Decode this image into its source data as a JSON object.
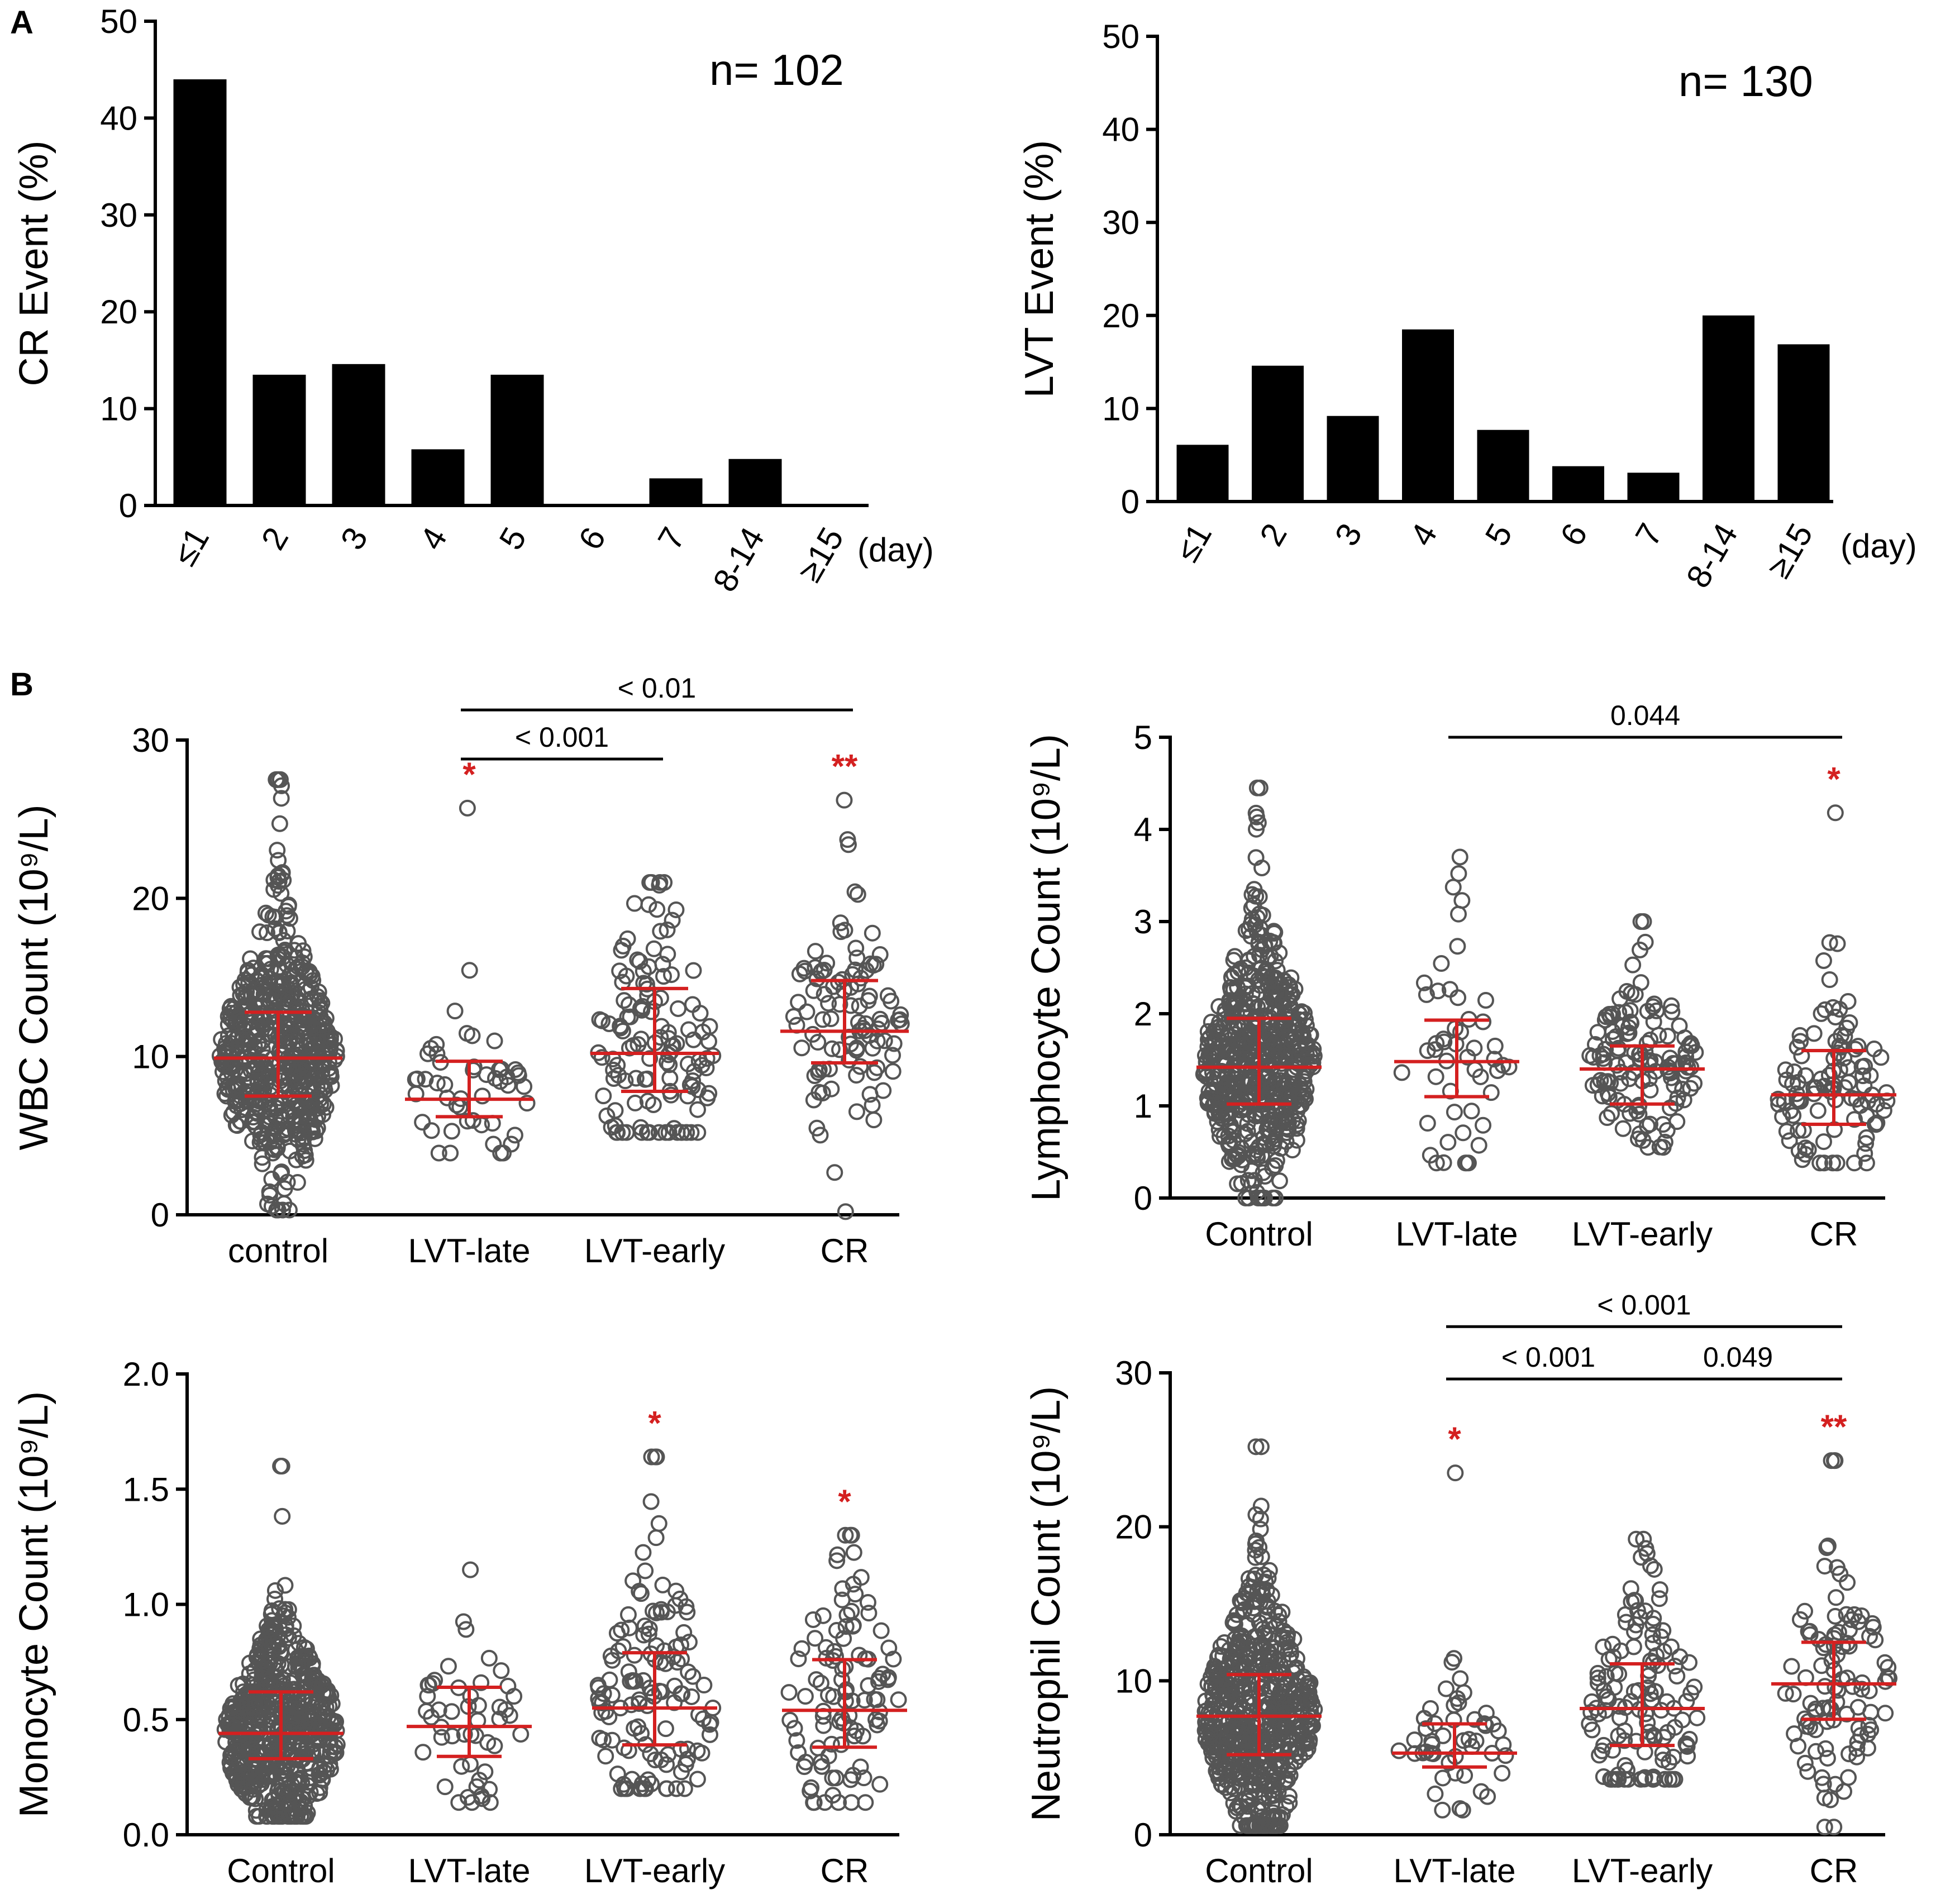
{
  "panel_labels": {
    "a": "A",
    "b": "B"
  },
  "chart_data": [
    {
      "id": "cr-hist",
      "type": "bar",
      "title": "",
      "ylabel": "CR Event  (%)",
      "xlabel": "",
      "annotation": "n= 102",
      "unit_label": "(day)",
      "categories": [
        "≤1",
        "2",
        "3",
        "4",
        "5",
        "6",
        "7",
        "8-14",
        "≥15"
      ],
      "values": [
        44,
        13.5,
        14.6,
        5.8,
        13.5,
        0,
        2.8,
        4.8,
        0
      ],
      "ylim": [
        0,
        50
      ],
      "yticks": [
        0,
        10,
        20,
        30,
        40,
        50
      ]
    },
    {
      "id": "lvt-hist",
      "type": "bar",
      "title": "",
      "ylabel": "LVT Event  (%)",
      "xlabel": "",
      "annotation": "n= 130",
      "unit_label": "(day)",
      "categories": [
        "≤1",
        "2",
        "3",
        "4",
        "5",
        "6",
        "7",
        "8-14",
        "≥15"
      ],
      "values": [
        6.1,
        14.6,
        9.2,
        18.5,
        7.7,
        3.8,
        3.1,
        20,
        16.9
      ],
      "ylim": [
        0,
        50
      ],
      "yticks": [
        0,
        10,
        20,
        30,
        40,
        50
      ]
    },
    {
      "id": "wbc",
      "type": "scatter",
      "ylabel": "WBC Count (10⁹/L)",
      "categories": [
        "control",
        "LVT-late",
        "LVT-early",
        "CR"
      ],
      "ylim": [
        0,
        30
      ],
      "yticks": [
        0,
        10,
        20,
        30
      ],
      "groups": [
        {
          "n": 600,
          "median": 9.9,
          "q1": 7.5,
          "q3": 12.8,
          "min": 0.3,
          "max": 27.5
        },
        {
          "n": 50,
          "median": 7.3,
          "q1": 6.2,
          "q3": 9.7,
          "min": 3.9,
          "max": 25.7
        },
        {
          "n": 130,
          "median": 10.2,
          "q1": 7.8,
          "q3": 14.3,
          "min": 5.2,
          "max": 21.0
        },
        {
          "n": 102,
          "median": 11.6,
          "q1": 9.6,
          "q3": 14.8,
          "min": 0.2,
          "max": 26.2
        }
      ],
      "significance": [
        "",
        "*",
        "",
        "**"
      ],
      "comparisons": [
        {
          "from": 1,
          "to": 3,
          "label": "< 0.01",
          "y": 31.9
        },
        {
          "from": 1,
          "to": 2,
          "label": "< 0.001",
          "y": 28.8
        }
      ]
    },
    {
      "id": "lymph",
      "type": "scatter",
      "ylabel": "Lymphocyte Count (10⁹/L)",
      "categories": [
        "Control",
        "LVT-late",
        "LVT-early",
        "CR"
      ],
      "ylim": [
        0,
        5
      ],
      "yticks": [
        0,
        1,
        2,
        3,
        4,
        5
      ],
      "groups": [
        {
          "n": 600,
          "median": 1.42,
          "q1": 1.02,
          "q3": 1.95,
          "min": 0.0,
          "max": 4.45
        },
        {
          "n": 50,
          "median": 1.48,
          "q1": 1.1,
          "q3": 1.93,
          "min": 0.38,
          "max": 3.7
        },
        {
          "n": 130,
          "median": 1.4,
          "q1": 1.02,
          "q3": 1.65,
          "min": 0.55,
          "max": 3.0
        },
        {
          "n": 102,
          "median": 1.12,
          "q1": 0.8,
          "q3": 1.6,
          "min": 0.38,
          "max": 4.18
        }
      ],
      "significance": [
        "",
        "",
        "",
        "*"
      ],
      "comparisons": [
        {
          "from": 1,
          "to": 3,
          "label": "0.044",
          "y": 5.0
        }
      ]
    },
    {
      "id": "mono",
      "type": "scatter",
      "ylabel": "Monocyte Count (10⁹/L)",
      "categories": [
        "Control",
        "LVT-late",
        "LVT-early",
        "CR"
      ],
      "ylim": [
        0,
        2.0
      ],
      "yticks": [
        "0.0",
        "0.5",
        "1.0",
        "1.5",
        "2.0"
      ],
      "groups": [
        {
          "n": 600,
          "median": 0.44,
          "q1": 0.33,
          "q3": 0.62,
          "min": 0.08,
          "max": 1.6
        },
        {
          "n": 50,
          "median": 0.47,
          "q1": 0.34,
          "q3": 0.64,
          "min": 0.14,
          "max": 1.15
        },
        {
          "n": 130,
          "median": 0.55,
          "q1": 0.39,
          "q3": 0.79,
          "min": 0.2,
          "max": 1.64
        },
        {
          "n": 102,
          "median": 0.54,
          "q1": 0.38,
          "q3": 0.76,
          "min": 0.14,
          "max": 1.3
        }
      ],
      "significance": [
        "",
        "",
        "*",
        "*"
      ],
      "comparisons": []
    },
    {
      "id": "neut",
      "type": "scatter",
      "ylabel": "Neutrophil Count (10⁹/L)",
      "categories": [
        "Control",
        "LVT-late",
        "LVT-early",
        "CR"
      ],
      "ylim": [
        0,
        30
      ],
      "yticks": [
        0,
        10,
        20,
        30
      ],
      "groups": [
        {
          "n": 600,
          "median": 7.7,
          "q1": 5.2,
          "q3": 10.4,
          "min": 0.6,
          "max": 25.2
        },
        {
          "n": 50,
          "median": 5.3,
          "q1": 4.4,
          "q3": 7.2,
          "min": 1.6,
          "max": 23.5
        },
        {
          "n": 130,
          "median": 8.2,
          "q1": 5.8,
          "q3": 11.1,
          "min": 3.6,
          "max": 19.2
        },
        {
          "n": 102,
          "median": 9.8,
          "q1": 7.5,
          "q3": 12.5,
          "min": 0.5,
          "max": 24.3
        }
      ],
      "significance": [
        "",
        "*",
        "",
        "**"
      ],
      "comparisons": [
        {
          "from": 1,
          "to": 3,
          "label": "< 0.001",
          "y": 33.0
        },
        {
          "from": 1,
          "to": 2,
          "label": "< 0.001",
          "y": 29.6
        },
        {
          "from": 2,
          "to": 3,
          "label": "0.049",
          "y": 29.6
        }
      ]
    }
  ]
}
